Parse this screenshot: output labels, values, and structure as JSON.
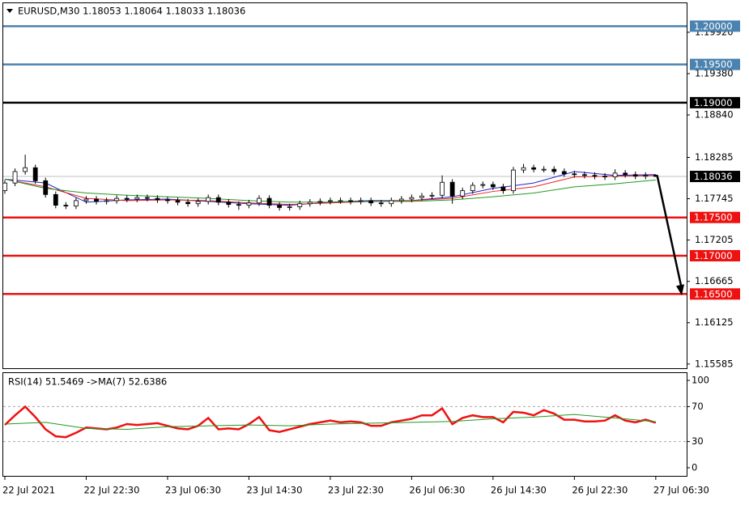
{
  "chart_data": [
    {
      "type": "candlestick",
      "title": "EURUSD,M30  1.18053 1.18064 1.18033 1.18036",
      "categories": [
        "22 Jul 2021",
        null,
        null,
        null,
        null,
        null,
        null,
        null,
        "22 Jul 22:30",
        null,
        null,
        null,
        null,
        null,
        null,
        null,
        "23 Jul 06:30",
        null,
        null,
        null,
        null,
        null,
        null,
        null,
        "23 Jul 14:30",
        null,
        null,
        null,
        null,
        null,
        null,
        null,
        "23 Jul 22:30",
        null,
        null,
        null,
        null,
        null,
        null,
        null,
        "26 Jul 06:30",
        null,
        null,
        null,
        null,
        null,
        null,
        null,
        "26 Jul 14:30",
        null,
        null,
        null,
        null,
        null,
        null,
        null,
        "26 Jul 22:30",
        null,
        null,
        null,
        null,
        null,
        null,
        null,
        "27 Jul 06:30"
      ],
      "open": [
        1.1785,
        1.1795,
        1.181,
        1.1815,
        1.1798,
        1.178,
        1.1766,
        1.1765,
        1.1772,
        1.1774,
        1.1771,
        1.1772,
        1.1775,
        1.1774,
        1.1776,
        1.1775,
        1.1773,
        1.1772,
        1.177,
        1.1768,
        1.1771,
        1.1776,
        1.177,
        1.1767,
        1.1766,
        1.1769,
        1.1775,
        1.1766,
        1.1763,
        1.1764,
        1.1768,
        1.177,
        1.1771,
        1.1772,
        1.1772,
        1.1771,
        1.1772,
        1.1769,
        1.1768,
        1.1772,
        1.1774,
        1.1776,
        1.1778,
        1.1779,
        1.1796,
        1.1778,
        1.1785,
        1.1792,
        1.1793,
        1.179,
        1.1785,
        1.1812,
        1.1815,
        1.1813,
        1.1813,
        1.181,
        1.1807,
        1.1806,
        1.1805,
        1.1804,
        1.1803,
        1.1808,
        1.1806,
        1.1804,
        1.18053
      ],
      "high": [
        1.1799,
        1.1814,
        1.1832,
        1.1819,
        1.1802,
        1.1784,
        1.177,
        1.1776,
        1.1778,
        1.1778,
        1.1776,
        1.1779,
        1.1779,
        1.178,
        1.178,
        1.1779,
        1.1777,
        1.1776,
        1.1774,
        1.1775,
        1.178,
        1.178,
        1.1774,
        1.1771,
        1.1773,
        1.1779,
        1.1779,
        1.177,
        1.1768,
        1.1772,
        1.1774,
        1.1775,
        1.1776,
        1.1776,
        1.1776,
        1.1776,
        1.1776,
        1.1773,
        1.1776,
        1.1778,
        1.178,
        1.1782,
        1.1783,
        1.1805,
        1.18,
        1.1789,
        1.1796,
        1.1797,
        1.1797,
        1.1794,
        1.1816,
        1.182,
        1.1819,
        1.1817,
        1.1817,
        1.1814,
        1.1811,
        1.181,
        1.1809,
        1.1808,
        1.1813,
        1.1812,
        1.181,
        1.1809,
        1.18064
      ],
      "low": [
        1.1781,
        1.1791,
        1.1806,
        1.1794,
        1.1776,
        1.1762,
        1.1761,
        1.1761,
        1.1768,
        1.1767,
        1.1767,
        1.1768,
        1.177,
        1.177,
        1.1771,
        1.1769,
        1.1768,
        1.1766,
        1.1764,
        1.1764,
        1.1767,
        1.1766,
        1.1763,
        1.176,
        1.1762,
        1.1765,
        1.1762,
        1.1759,
        1.1759,
        1.176,
        1.1764,
        1.1766,
        1.1767,
        1.1768,
        1.1767,
        1.1767,
        1.1765,
        1.1764,
        1.1764,
        1.1768,
        1.177,
        1.1772,
        1.1774,
        1.1775,
        1.1768,
        1.1774,
        1.1781,
        1.1788,
        1.1786,
        1.1781,
        1.1781,
        1.1808,
        1.1809,
        1.1809,
        1.1806,
        1.1803,
        1.1802,
        1.1801,
        1.18,
        1.1799,
        1.1799,
        1.1802,
        1.18,
        1.18,
        1.18033
      ],
      "close": [
        1.1795,
        1.181,
        1.1815,
        1.1798,
        1.178,
        1.1766,
        1.1765,
        1.1772,
        1.1774,
        1.1771,
        1.1772,
        1.1775,
        1.1774,
        1.1776,
        1.1775,
        1.1773,
        1.1772,
        1.177,
        1.1768,
        1.1771,
        1.1776,
        1.177,
        1.1767,
        1.1766,
        1.1769,
        1.1775,
        1.1766,
        1.1763,
        1.1764,
        1.1768,
        1.177,
        1.1771,
        1.1772,
        1.1772,
        1.1771,
        1.1772,
        1.1769,
        1.1768,
        1.1772,
        1.1774,
        1.1776,
        1.1778,
        1.1779,
        1.1796,
        1.1778,
        1.1785,
        1.1792,
        1.1793,
        1.179,
        1.1785,
        1.1812,
        1.1815,
        1.1813,
        1.1813,
        1.181,
        1.1807,
        1.1806,
        1.1805,
        1.1804,
        1.1803,
        1.1808,
        1.1806,
        1.1804,
        1.1805,
        1.18036
      ],
      "series": [
        {
          "color": "#2222cc",
          "x": [
            0,
            4,
            8,
            12,
            16,
            20,
            24,
            28,
            32,
            36,
            40,
            44,
            48,
            52,
            56,
            60,
            64
          ],
          "values": [
            1.18,
            1.1795,
            1.177,
            1.1773,
            1.1774,
            1.1771,
            1.1768,
            1.1766,
            1.177,
            1.1772,
            1.1772,
            1.1777,
            1.1788,
            1.1795,
            1.181,
            1.1805,
            1.1806
          ]
        },
        {
          "color": "#ee2222",
          "x": [
            0,
            4,
            8,
            12,
            16,
            20,
            24,
            28,
            32,
            36,
            40,
            44,
            48,
            52,
            56,
            60,
            64
          ],
          "values": [
            1.18,
            1.179,
            1.1775,
            1.1772,
            1.1773,
            1.1772,
            1.1769,
            1.1767,
            1.1769,
            1.1771,
            1.1772,
            1.1775,
            1.1784,
            1.179,
            1.1803,
            1.1804,
            1.1805
          ]
        },
        {
          "color": "#229922",
          "x": [
            0,
            4,
            8,
            12,
            16,
            20,
            24,
            28,
            32,
            36,
            40,
            44,
            48,
            52,
            56,
            60,
            64
          ],
          "values": [
            1.18,
            1.1788,
            1.1782,
            1.1779,
            1.1777,
            1.1775,
            1.1772,
            1.177,
            1.177,
            1.1771,
            1.1771,
            1.1773,
            1.1777,
            1.1782,
            1.179,
            1.1794,
            1.1799
          ]
        }
      ],
      "ylim": [
        1.1553,
        1.2031
      ],
      "yticks": [
        {
          "value": 1.1992,
          "label": "1.19920"
        },
        {
          "value": 1.1938,
          "label": "1.19380"
        },
        {
          "value": 1.1884,
          "label": "1.18840"
        },
        1.18285,
        {
          "value": 1.17745,
          "label": "1.17745"
        },
        {
          "value": 1.17205,
          "label": "1.17205"
        },
        {
          "value": 1.16665,
          "label": "1.16665"
        },
        {
          "value": 1.16125,
          "label": "1.16125"
        },
        {
          "value": 1.15585,
          "label": "1.15585"
        }
      ],
      "levels": [
        {
          "value": 1.2,
          "label": "1.20000",
          "color": "#4a82b0"
        },
        {
          "value": 1.195,
          "label": "1.19500",
          "color": "#4a82b0"
        },
        {
          "value": 1.19,
          "label": "1.19000",
          "color": "#000000"
        },
        {
          "value": 1.175,
          "label": "1.17500",
          "color": "#ee1111"
        },
        {
          "value": 1.17,
          "label": "1.17000",
          "color": "#ee1111"
        },
        {
          "value": 1.165,
          "label": "1.16500",
          "color": "#ee1111"
        }
      ],
      "current_price": 1.18036
    },
    {
      "type": "line",
      "title": "RSI(14) 51.5469  ->MA(7) 52.6386",
      "series": [
        {
          "color": "#ee1111",
          "values": [
            49,
            60,
            70,
            58,
            44,
            36,
            35,
            40,
            46,
            45,
            44,
            46,
            50,
            49,
            50,
            51,
            48,
            45,
            44,
            48,
            57,
            44,
            45,
            44,
            50,
            58,
            43,
            41,
            44,
            47,
            50,
            52,
            54,
            52,
            53,
            52,
            48,
            48,
            52,
            54,
            56,
            60,
            60,
            68,
            50,
            57,
            60,
            58,
            58,
            52,
            64,
            63,
            60,
            66,
            62,
            55,
            55,
            53,
            53,
            54,
            60,
            54,
            52,
            55,
            51.5469
          ]
        },
        {
          "color": "#229922",
          "x": [
            0,
            4,
            8,
            12,
            16,
            20,
            24,
            28,
            32,
            36,
            40,
            44,
            48,
            52,
            56,
            60,
            64
          ],
          "values": [
            50,
            52,
            45,
            44,
            47,
            48,
            49,
            48,
            50,
            51,
            52,
            53,
            56,
            58,
            61,
            57,
            52.6386
          ]
        }
      ],
      "ylim": [
        -9.3,
        109.3
      ],
      "yticks": [
        0,
        30,
        70,
        100
      ],
      "levels": [
        30,
        70
      ]
    }
  ]
}
